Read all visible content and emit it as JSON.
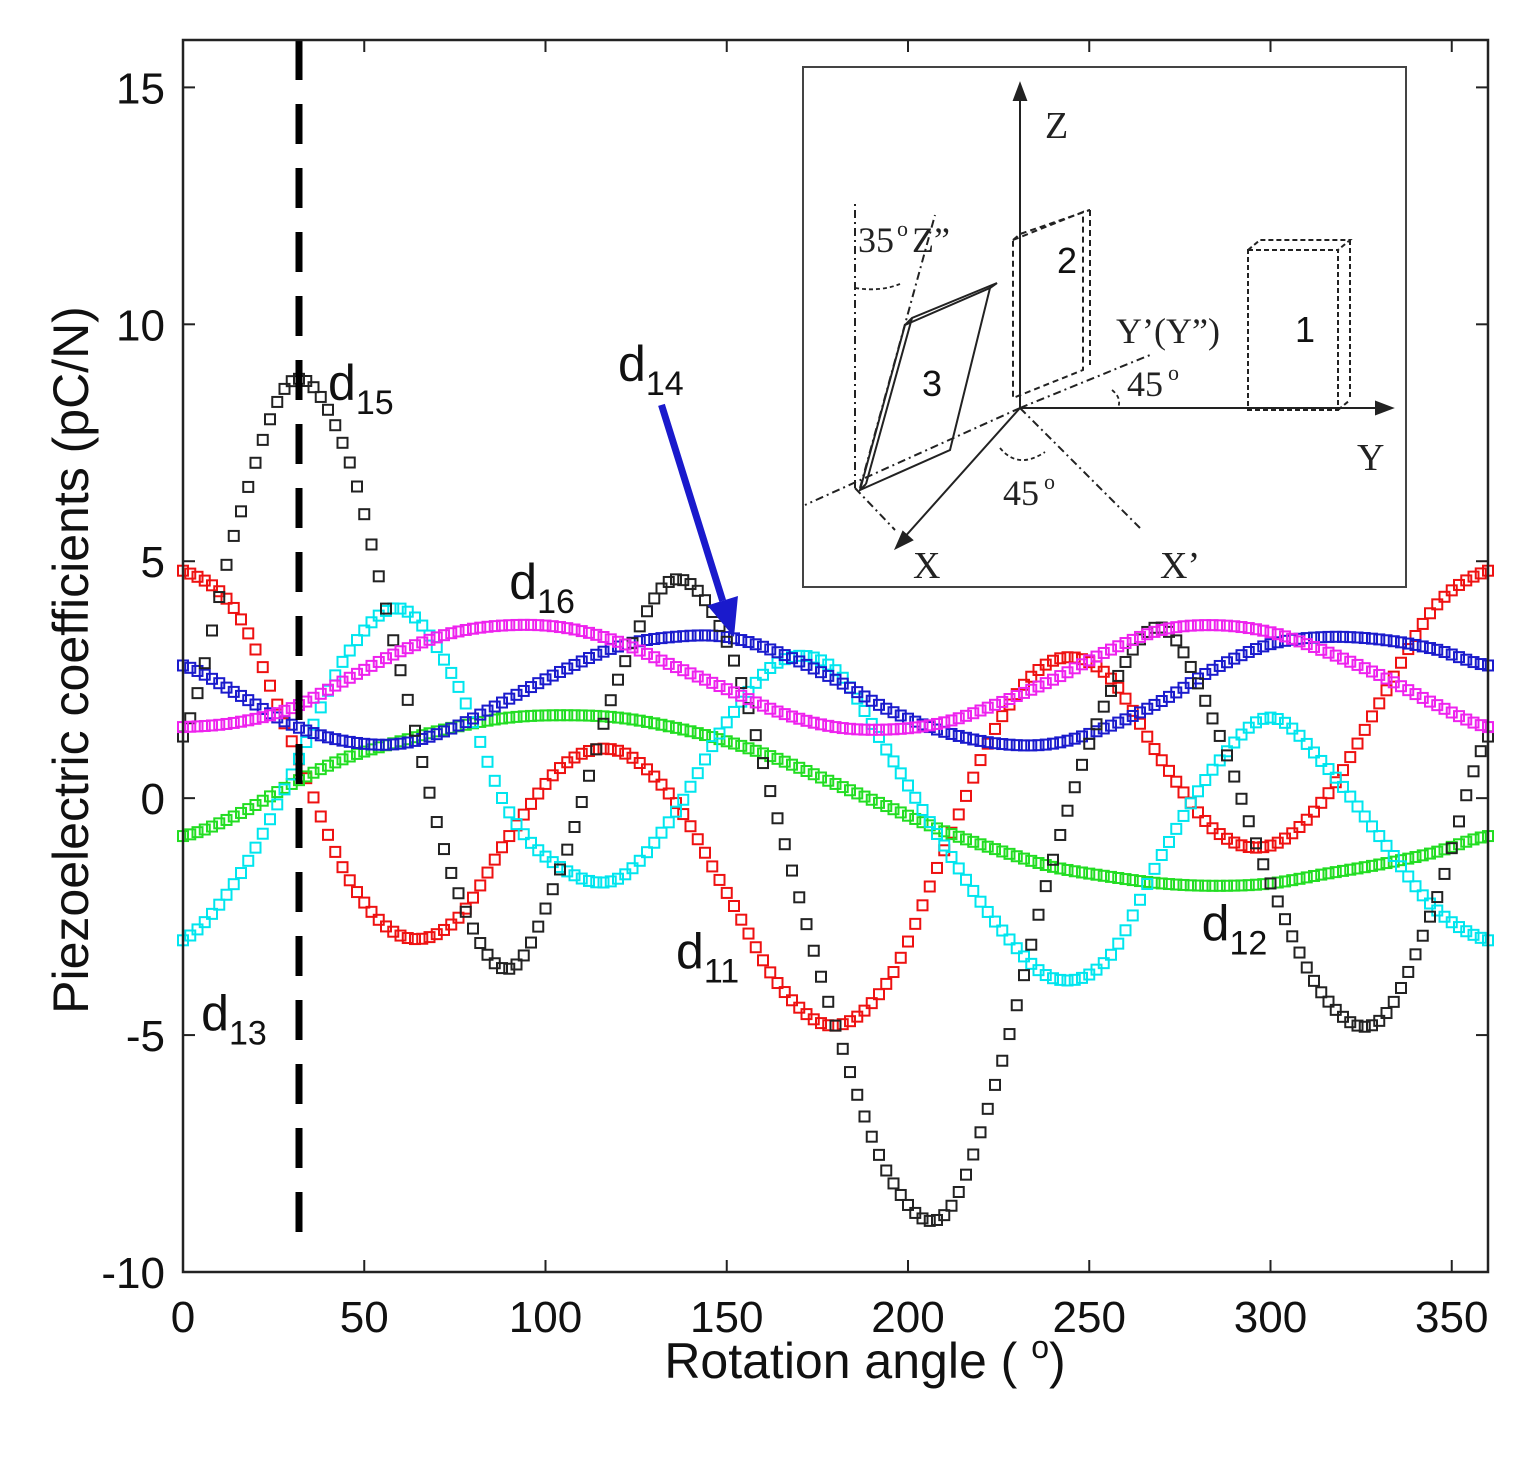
{
  "chart_data": {
    "type": "scatter",
    "title": "",
    "xlabel": "Rotation angle (o)",
    "ylabel": "Piezoelectric coefficients (pC/N)",
    "xlim": [
      0,
      360
    ],
    "ylim": [
      -10,
      16
    ],
    "x_ticks": [
      "0",
      "50",
      "100",
      "150",
      "200",
      "250",
      "300",
      "350"
    ],
    "y_ticks": [
      "-10",
      "-5",
      "0",
      "5",
      "10",
      "15"
    ],
    "x_tick_values": [
      0,
      50,
      100,
      150,
      200,
      250,
      300,
      350
    ],
    "y_tick_values": [
      -10,
      -5,
      0,
      5,
      10,
      15
    ],
    "marker": "open-square",
    "x": [
      0,
      15,
      30,
      45,
      60,
      75,
      90,
      105,
      120,
      135,
      150,
      165,
      180,
      195,
      210,
      225,
      240,
      255,
      270,
      285,
      300,
      315,
      330,
      345,
      360
    ],
    "series": [
      {
        "name": "d11",
        "color": "#ee1111",
        "values": [
          4.8,
          3.9,
          1.2,
          -1.6,
          -2.9,
          -2.6,
          -0.8,
          0.7,
          1.0,
          0.0,
          -2.0,
          -4.0,
          -4.8,
          -3.8,
          -1.1,
          1.6,
          2.9,
          2.6,
          0.8,
          -0.7,
          -1.0,
          0.0,
          2.0,
          4.0,
          4.8
        ]
      },
      {
        "name": "d12",
        "color": "#22dd22",
        "values": [
          -0.8,
          -0.35,
          0.3,
          0.85,
          1.2,
          1.5,
          1.7,
          1.75,
          1.7,
          1.5,
          1.2,
          0.8,
          0.3,
          -0.2,
          -0.7,
          -1.1,
          -1.45,
          -1.65,
          -1.8,
          -1.85,
          -1.8,
          -1.6,
          -1.4,
          -1.15,
          -0.8
        ]
      },
      {
        "name": "d13",
        "color": "#00e5ee",
        "values": [
          -3.0,
          -1.7,
          0.5,
          3.0,
          4.0,
          2.5,
          -0.3,
          -1.5,
          -1.7,
          -0.4,
          1.6,
          2.9,
          2.7,
          0.9,
          -1.0,
          -2.7,
          -3.8,
          -3.4,
          -1.2,
          0.7,
          1.7,
          0.7,
          -0.8,
          -2.3,
          -3.0
        ]
      },
      {
        "name": "d14",
        "color": "#1a1acc",
        "values": [
          2.8,
          2.2,
          1.55,
          1.2,
          1.15,
          1.5,
          2.1,
          2.7,
          3.2,
          3.4,
          3.4,
          3.05,
          2.5,
          1.85,
          1.4,
          1.15,
          1.15,
          1.5,
          2.05,
          2.75,
          3.25,
          3.4,
          3.35,
          3.15,
          2.8
        ]
      },
      {
        "name": "d15",
        "color": "#222222",
        "values": [
          1.3,
          5.8,
          8.8,
          7.3,
          2.7,
          -1.8,
          -3.6,
          -1.3,
          2.5,
          4.6,
          3.3,
          -0.7,
          -4.8,
          -8.0,
          -8.8,
          -5.8,
          -1.3,
          2.1,
          3.6,
          1.5,
          -1.8,
          -4.2,
          -4.7,
          -2.3,
          1.3
        ]
      },
      {
        "name": "d16",
        "color": "#ee22ee",
        "values": [
          1.5,
          1.6,
          1.9,
          2.5,
          3.1,
          3.5,
          3.65,
          3.6,
          3.3,
          2.8,
          2.3,
          1.8,
          1.5,
          1.45,
          1.6,
          2.0,
          2.5,
          3.1,
          3.55,
          3.65,
          3.5,
          3.1,
          2.6,
          2.0,
          1.5
        ]
      }
    ],
    "vline": {
      "x": 32,
      "style": "dashed"
    },
    "annotations": [
      {
        "id": "d15",
        "base": "d",
        "sub": "15",
        "x": 40,
        "y": 8.4
      },
      {
        "id": "d14",
        "base": "d",
        "sub": "14",
        "x": 120,
        "y": 8.8
      },
      {
        "id": "d16",
        "base": "d",
        "sub": "16",
        "x": 90,
        "y": 4.2
      },
      {
        "id": "d13",
        "base": "d",
        "sub": "13",
        "x": 5,
        "y": -4.9
      },
      {
        "id": "d11",
        "base": "d",
        "sub": "11",
        "x": 136,
        "y": -3.6
      },
      {
        "id": "d12",
        "base": "d",
        "sub": "12",
        "x": 281,
        "y": -3.0
      }
    ],
    "arrow": {
      "label": "d14",
      "from": [
        132,
        8.3
      ],
      "to": [
        152,
        3.4
      ],
      "color": "#1a1acc"
    }
  },
  "inset": {
    "axis_labels": {
      "z": "Z",
      "y": "Y",
      "x": "X",
      "x_prime": "X’",
      "y_prime": "Y’(Y”)",
      "z_double_prime": "Z”"
    },
    "angle_labels": {
      "a35": "35",
      "a45_y": "45",
      "a45_x": "45",
      "degree_mark": "o"
    },
    "plate_labels": {
      "p1": "1",
      "p2": "2",
      "p3": "3"
    }
  }
}
